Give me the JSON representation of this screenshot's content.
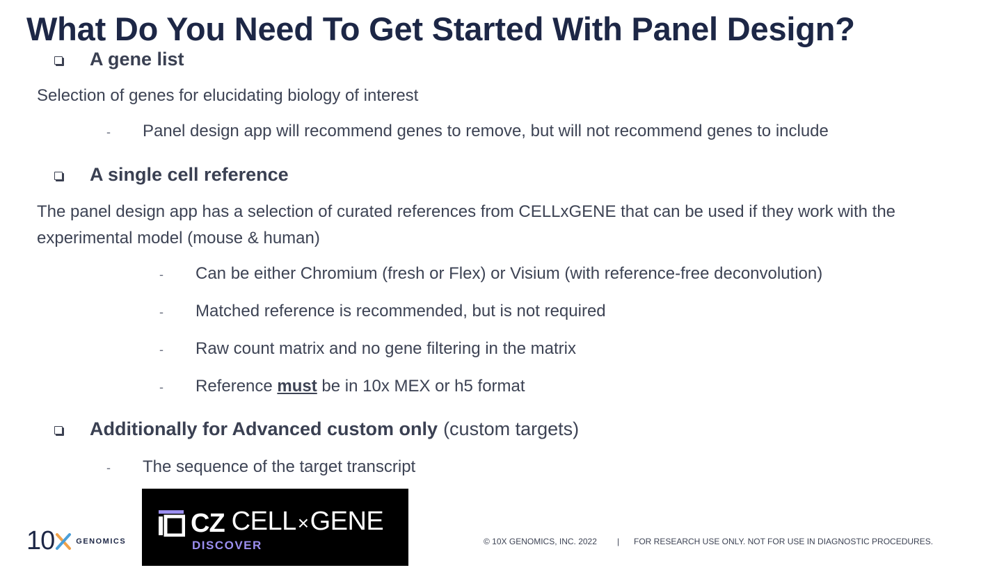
{
  "title": "What Do You Need To Get Started With Panel Design?",
  "sections": [
    {
      "heading": "A gene list",
      "description": "Selection of genes for elucidating biology of interest",
      "bullets": [
        "Panel design app will recommend genes to remove, but will not recommend genes to include"
      ]
    },
    {
      "heading": "A single cell reference",
      "description": "The panel design app has a selection of curated references from CELLxGENE that can be used if they work with the experimental model (mouse & human)",
      "bullets": [
        "Can be either Chromium (fresh or Flex) or Visium (with reference-free deconvolution)",
        "Matched reference is recommended, but is not required",
        "Raw count matrix and no gene filtering in the matrix"
      ],
      "format_bullet": {
        "before": "Reference",
        "emphasis": "must",
        "after": "be in 10x MEX or h5 format"
      }
    },
    {
      "heading": "Additionally for Advanced custom only",
      "heading_suffix": "(custom targets)",
      "bullets": [
        "The sequence of the target transcript"
      ]
    }
  ],
  "bullet_marker": "-",
  "logos": {
    "tenx": {
      "number": "10",
      "x": "X",
      "word": "GENOMICS"
    },
    "cellxgene": {
      "cz": "CZ",
      "cell": "CELL",
      "times": "×",
      "gene": "GENE",
      "discover": "DISCOVER"
    }
  },
  "footer": {
    "copyright": "© 10X GENOMICS, INC. 2022",
    "separator": "|",
    "disclaimer": "FOR RESEARCH USE ONLY. NOT FOR USE IN DIAGNOSTIC PROCEDURES."
  },
  "colors": {
    "title": "#1d2746",
    "body": "#3d4354",
    "discover": "#9b8ff0",
    "tenx_x_left": "#f0a24a",
    "tenx_x_right": "#4a9fd8"
  }
}
